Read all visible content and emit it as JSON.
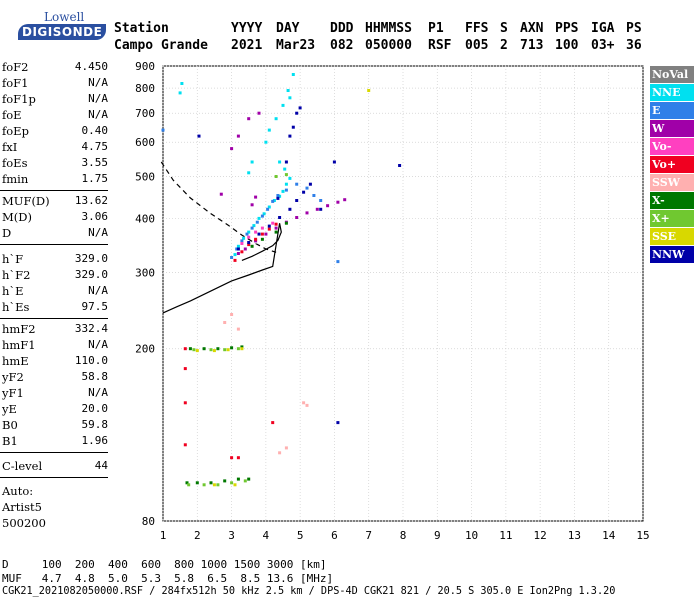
{
  "logo": {
    "top": "Lowell",
    "main": "DIGISONDE"
  },
  "header": {
    "row1": [
      "Station",
      "YYYY",
      "DAY",
      "DDD",
      "HHMMSS",
      "P1",
      "FFS",
      "S",
      "AXN",
      "PPS",
      "IGA",
      "PS"
    ],
    "row2": [
      "Campo Grande",
      "2021",
      "Mar23",
      "082",
      "050000",
      "RSF",
      "005",
      "2",
      "713",
      "100",
      "03+",
      "36"
    ]
  },
  "params": [
    {
      "name": "foF2",
      "value": "4.450"
    },
    {
      "name": "foF1",
      "value": "N/A"
    },
    {
      "name": "foF1p",
      "value": "N/A"
    },
    {
      "name": "foE",
      "value": "N/A"
    },
    {
      "name": "foEp",
      "value": "0.40"
    },
    {
      "name": "fxI",
      "value": "4.75"
    },
    {
      "name": "foEs",
      "value": "3.55"
    },
    {
      "name": "fmin",
      "value": "1.75"
    },
    {
      "name": "MUF(D)",
      "value": "13.62"
    },
    {
      "name": "M(D)",
      "value": "3.06"
    },
    {
      "name": "D",
      "value": "N/A"
    },
    {
      "name": "h`F",
      "value": "329.0"
    },
    {
      "name": "h`F2",
      "value": "329.0"
    },
    {
      "name": "h`E",
      "value": "N/A"
    },
    {
      "name": "h`Es",
      "value": "97.5"
    },
    {
      "name": "hmF2",
      "value": "332.4"
    },
    {
      "name": "hmF1",
      "value": "N/A"
    },
    {
      "name": "hmE",
      "value": "110.0"
    },
    {
      "name": "yF2",
      "value": "58.8"
    },
    {
      "name": "yF1",
      "value": "N/A"
    },
    {
      "name": "yE",
      "value": "20.0"
    },
    {
      "name": "B0",
      "value": "59.8"
    },
    {
      "name": "B1",
      "value": "1.96"
    },
    {
      "name": "C-level",
      "value": "44"
    }
  ],
  "auto": [
    "Auto:",
    "Artist5",
    "500200"
  ],
  "legend": [
    {
      "label": "NoVal",
      "color": "#808080"
    },
    {
      "label": "NNE",
      "color": "#00e0f0"
    },
    {
      "label": "E",
      "color": "#2f7fe8"
    },
    {
      "label": "W",
      "color": "#a000a8"
    },
    {
      "label": "Vo-",
      "color": "#ff40c0"
    },
    {
      "label": "Vo+",
      "color": "#f00020"
    },
    {
      "label": "SSW",
      "color": "#ffb0b0"
    },
    {
      "label": "X-",
      "color": "#007800"
    },
    {
      "label": "X+",
      "color": "#70c830"
    },
    {
      "label": "SSE",
      "color": "#d8d800"
    },
    {
      "label": "NNW",
      "color": "#0000a8"
    }
  ],
  "footer": {
    "row1": "D     100  200  400  600  800 1000 1500 3000 [km]",
    "row2": "MUF   4.7  4.8  5.0  5.3  5.8  6.5  8.5 13.6 [MHz]",
    "row3": "CGK21_2021082050000.RSF / 284fx512h 50 kHz 2.5 km / DPS-4D CGK21 821 / 20.5 S 305.0 E Ion2Png 1.3.20"
  },
  "chart_data": {
    "type": "scatter",
    "xlabel": "",
    "ylabel": "",
    "xlim": [
      1,
      15
    ],
    "ylim": [
      80,
      900
    ],
    "x_ticks": [
      1,
      2,
      3,
      4,
      5,
      6,
      7,
      8,
      9,
      10,
      11,
      12,
      13,
      14,
      15
    ],
    "y_ticks": [
      80,
      200,
      300,
      400,
      500,
      600,
      700,
      800,
      900
    ],
    "grid": true,
    "legend_position": "right",
    "x_scale": "linear",
    "y_scale": "log",
    "profile_solid": [
      [
        3.3,
        320
      ],
      [
        3.6,
        327
      ],
      [
        3.9,
        336
      ],
      [
        4.2,
        346
      ],
      [
        4.35,
        356
      ],
      [
        4.45,
        372
      ],
      [
        4.4,
        390
      ],
      [
        4.2,
        310
      ],
      [
        3.9,
        304
      ],
      [
        3.5,
        296
      ],
      [
        3.0,
        287
      ],
      [
        2.4,
        272
      ],
      [
        1.8,
        258
      ],
      [
        1.4,
        250
      ],
      [
        1.0,
        242
      ]
    ],
    "profile_dashed": [
      [
        0.95,
        540
      ],
      [
        1.3,
        490
      ],
      [
        1.8,
        446
      ],
      [
        2.4,
        410
      ],
      [
        2.9,
        386
      ],
      [
        3.3,
        366
      ],
      [
        3.7,
        350
      ],
      [
        4.0,
        340
      ],
      [
        4.3,
        334
      ]
    ],
    "series": [
      {
        "name": "NNE",
        "points": [
          [
            3.1,
            330
          ],
          [
            3.2,
            345
          ],
          [
            3.35,
            360
          ],
          [
            3.5,
            372
          ],
          [
            3.65,
            385
          ],
          [
            3.8,
            400
          ],
          [
            3.95,
            410
          ],
          [
            4.1,
            425
          ],
          [
            4.25,
            440
          ],
          [
            4.4,
            450
          ],
          [
            4.5,
            462
          ],
          [
            4.6,
            480
          ],
          [
            4.7,
            495
          ],
          [
            4.55,
            520
          ],
          [
            4.4,
            540
          ],
          [
            3.5,
            510
          ],
          [
            3.6,
            540
          ],
          [
            4.0,
            600
          ],
          [
            4.1,
            640
          ],
          [
            4.3,
            680
          ],
          [
            4.5,
            730
          ],
          [
            4.7,
            760
          ],
          [
            4.65,
            790
          ],
          [
            4.8,
            860
          ],
          [
            1.5,
            780
          ],
          [
            1.55,
            820
          ]
        ]
      },
      {
        "name": "E",
        "points": [
          [
            3.0,
            325
          ],
          [
            3.15,
            340
          ],
          [
            3.3,
            355
          ],
          [
            3.45,
            368
          ],
          [
            3.6,
            380
          ],
          [
            3.75,
            392
          ],
          [
            3.9,
            405
          ],
          [
            4.05,
            420
          ],
          [
            4.2,
            438
          ],
          [
            4.35,
            452
          ],
          [
            4.6,
            465
          ],
          [
            4.9,
            480
          ],
          [
            5.2,
            470
          ],
          [
            5.4,
            452
          ],
          [
            5.6,
            440
          ],
          [
            6.1,
            318
          ],
          [
            1.0,
            640
          ]
        ]
      },
      {
        "name": "W",
        "points": [
          [
            3.2,
            332
          ],
          [
            3.4,
            340
          ],
          [
            3.7,
            355
          ],
          [
            4.0,
            368
          ],
          [
            4.3,
            380
          ],
          [
            4.6,
            392
          ],
          [
            4.9,
            402
          ],
          [
            5.2,
            412
          ],
          [
            5.5,
            420
          ],
          [
            5.8,
            428
          ],
          [
            6.1,
            436
          ],
          [
            6.3,
            442
          ],
          [
            3.6,
            430
          ],
          [
            3.7,
            448
          ],
          [
            2.7,
            455
          ],
          [
            3.0,
            580
          ],
          [
            3.2,
            620
          ],
          [
            3.5,
            680
          ],
          [
            3.8,
            700
          ]
        ]
      },
      {
        "name": "Vo-",
        "points": [
          [
            3.3,
            350
          ],
          [
            3.5,
            362
          ],
          [
            3.7,
            372
          ],
          [
            3.9,
            380
          ],
          [
            4.2,
            390
          ]
        ]
      },
      {
        "name": "Vo+",
        "points": [
          [
            1.65,
            120
          ],
          [
            1.65,
            150
          ],
          [
            1.65,
            180
          ],
          [
            1.65,
            200
          ],
          [
            3.1,
            320
          ],
          [
            3.3,
            335
          ],
          [
            3.5,
            348
          ],
          [
            3.7,
            358
          ],
          [
            3.9,
            368
          ],
          [
            4.1,
            378
          ],
          [
            4.3,
            388
          ],
          [
            3.0,
            112
          ],
          [
            3.2,
            112
          ],
          [
            4.2,
            135
          ]
        ]
      },
      {
        "name": "SSW",
        "points": [
          [
            2.8,
            230
          ],
          [
            3.0,
            240
          ],
          [
            3.2,
            222
          ],
          [
            4.4,
            115
          ],
          [
            4.6,
            118
          ],
          [
            5.1,
            150
          ],
          [
            5.2,
            148
          ]
        ]
      },
      {
        "name": "X-",
        "points": [
          [
            1.7,
            98
          ],
          [
            2.0,
            98
          ],
          [
            2.4,
            98
          ],
          [
            2.8,
            99
          ],
          [
            3.2,
            100
          ],
          [
            3.5,
            100
          ],
          [
            1.8,
            200
          ],
          [
            2.2,
            200
          ],
          [
            2.6,
            200
          ],
          [
            3.0,
            201
          ],
          [
            3.3,
            202
          ],
          [
            3.6,
            345
          ],
          [
            3.9,
            358
          ],
          [
            4.3,
            372
          ],
          [
            4.6,
            390
          ]
        ]
      },
      {
        "name": "X+",
        "points": [
          [
            1.75,
            97
          ],
          [
            2.2,
            97
          ],
          [
            2.6,
            97
          ],
          [
            3.0,
            98
          ],
          [
            3.4,
            99
          ],
          [
            1.9,
            199
          ],
          [
            2.4,
            199
          ],
          [
            2.8,
            199
          ],
          [
            3.2,
            200
          ],
          [
            4.3,
            500
          ],
          [
            4.6,
            505
          ]
        ]
      },
      {
        "name": "SSE",
        "points": [
          [
            2.0,
            198
          ],
          [
            2.5,
            198
          ],
          [
            2.9,
            199
          ],
          [
            3.3,
            200
          ],
          [
            2.5,
            97
          ],
          [
            3.1,
            97
          ],
          [
            7.0,
            790
          ]
        ]
      },
      {
        "name": "NNW",
        "points": [
          [
            3.2,
            340
          ],
          [
            3.5,
            352
          ],
          [
            3.8,
            368
          ],
          [
            4.1,
            384
          ],
          [
            4.4,
            402
          ],
          [
            4.7,
            420
          ],
          [
            4.9,
            440
          ],
          [
            5.1,
            460
          ],
          [
            5.3,
            480
          ],
          [
            4.6,
            540
          ],
          [
            4.7,
            620
          ],
          [
            4.8,
            650
          ],
          [
            4.9,
            700
          ],
          [
            5.0,
            720
          ],
          [
            2.05,
            620
          ],
          [
            4.35,
            445
          ],
          [
            5.6,
            420
          ],
          [
            6.0,
            540
          ],
          [
            7.9,
            530
          ],
          [
            6.1,
            135
          ]
        ]
      },
      {
        "name": "NoVal",
        "points": []
      }
    ]
  }
}
